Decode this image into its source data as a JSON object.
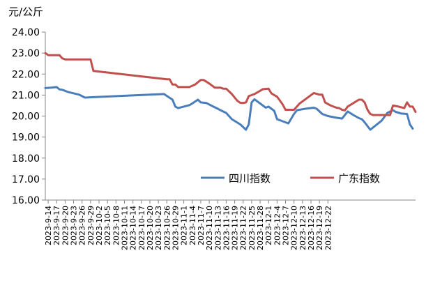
{
  "chart_data": {
    "type": "line",
    "unit_label": "元/公斤",
    "ylim": [
      16.0,
      24.0
    ],
    "yticks": [
      "24.00",
      "23.00",
      "22.00",
      "21.00",
      "20.00",
      "19.00",
      "18.00",
      "17.00",
      "16.00"
    ],
    "xticks": [
      "2023-9-14",
      "2023-9-17",
      "2023-9-20",
      "2023-9-23",
      "2023-9-26",
      "2023-9-29",
      "2023-10-2",
      "2023-10-5",
      "2023-10-8",
      "2023-10-11",
      "2023-10-14",
      "2023-10-17",
      "2023-10-20",
      "2023-10-23",
      "2023-10-26",
      "2023-10-29",
      "2023-11-1",
      "2023-11-4",
      "2023-11-7",
      "2023-11-10",
      "2023-11-13",
      "2023-11-16",
      "2023-11-19",
      "2023-11-22",
      "2023-11-25",
      "2023-11-28",
      "2023-12-1",
      "2023-12-4",
      "2023-12-7",
      "2023-12-10",
      "2023-12-13",
      "2023-12-16",
      "2023-12-19",
      "2023-12-22"
    ],
    "grid": false,
    "legend_position": "bottom-right inside plot",
    "series": [
      {
        "name": "四川指数",
        "color": "#4a7ebb",
        "points": [
          [
            0,
            21.33
          ],
          [
            2,
            21.35
          ],
          [
            4,
            21.38
          ],
          [
            5,
            21.27
          ],
          [
            6,
            21.25
          ],
          [
            8,
            21.15
          ],
          [
            12,
            21.02
          ],
          [
            14,
            20.88
          ],
          [
            17,
            20.9
          ],
          [
            42,
            21.05
          ],
          [
            45,
            20.78
          ],
          [
            46,
            20.45
          ],
          [
            47,
            20.38
          ],
          [
            49,
            20.45
          ],
          [
            51,
            20.52
          ],
          [
            52,
            20.6
          ],
          [
            54,
            20.78
          ],
          [
            55,
            20.65
          ],
          [
            57,
            20.62
          ],
          [
            59,
            20.48
          ],
          [
            61,
            20.35
          ],
          [
            62,
            20.28
          ],
          [
            64,
            20.15
          ],
          [
            66,
            19.85
          ],
          [
            69,
            19.6
          ],
          [
            71,
            19.35
          ],
          [
            72,
            19.6
          ],
          [
            73,
            20.65
          ],
          [
            74,
            20.8
          ],
          [
            76,
            20.6
          ],
          [
            78,
            20.4
          ],
          [
            79,
            20.45
          ],
          [
            81,
            20.25
          ],
          [
            82,
            19.85
          ],
          [
            84,
            19.75
          ],
          [
            86,
            19.65
          ],
          [
            88,
            20.1
          ],
          [
            89,
            20.28
          ],
          [
            92,
            20.35
          ],
          [
            95,
            20.4
          ],
          [
            96,
            20.35
          ],
          [
            98,
            20.1
          ],
          [
            100,
            20.0
          ],
          [
            103,
            19.92
          ],
          [
            105,
            19.88
          ],
          [
            107,
            20.22
          ],
          [
            109,
            20.05
          ],
          [
            111,
            19.9
          ],
          [
            112,
            19.85
          ],
          [
            113,
            19.7
          ],
          [
            115,
            19.35
          ],
          [
            119,
            19.78
          ],
          [
            121,
            20.15
          ],
          [
            123,
            20.28
          ],
          [
            124,
            20.2
          ],
          [
            126,
            20.12
          ],
          [
            128,
            20.1
          ],
          [
            129,
            19.6
          ],
          [
            130,
            19.4
          ]
        ]
      },
      {
        "name": "广东指数",
        "color": "#c0504d",
        "points": [
          [
            0,
            23.0
          ],
          [
            1,
            22.9
          ],
          [
            5,
            22.9
          ],
          [
            6,
            22.75
          ],
          [
            7,
            22.7
          ],
          [
            16,
            22.7
          ],
          [
            17,
            22.15
          ],
          [
            43,
            21.75
          ],
          [
            44,
            21.75
          ],
          [
            45,
            21.5
          ],
          [
            46,
            21.5
          ],
          [
            47,
            21.38
          ],
          [
            51,
            21.38
          ],
          [
            53,
            21.5
          ],
          [
            55,
            21.72
          ],
          [
            56,
            21.72
          ],
          [
            58,
            21.55
          ],
          [
            60,
            21.35
          ],
          [
            62,
            21.35
          ],
          [
            63,
            21.3
          ],
          [
            64,
            21.3
          ],
          [
            66,
            21.05
          ],
          [
            68,
            20.72
          ],
          [
            69,
            20.63
          ],
          [
            70,
            20.62
          ],
          [
            71,
            20.65
          ],
          [
            72,
            20.95
          ],
          [
            74,
            21.05
          ],
          [
            77,
            21.28
          ],
          [
            79,
            21.3
          ],
          [
            80,
            21.08
          ],
          [
            82,
            20.92
          ],
          [
            84,
            20.55
          ],
          [
            85,
            20.3
          ],
          [
            88,
            20.3
          ],
          [
            90,
            20.6
          ],
          [
            93,
            20.9
          ],
          [
            95,
            21.1
          ],
          [
            97,
            21.02
          ],
          [
            98,
            21.02
          ],
          [
            99,
            20.65
          ],
          [
            101,
            20.5
          ],
          [
            103,
            20.4
          ],
          [
            104,
            20.38
          ],
          [
            105,
            20.3
          ],
          [
            106,
            20.27
          ],
          [
            107,
            20.45
          ],
          [
            110,
            20.7
          ],
          [
            111,
            20.78
          ],
          [
            112,
            20.78
          ],
          [
            113,
            20.65
          ],
          [
            114,
            20.3
          ],
          [
            115,
            20.1
          ],
          [
            116,
            20.05
          ],
          [
            122,
            20.05
          ],
          [
            123,
            20.5
          ],
          [
            125,
            20.45
          ],
          [
            127,
            20.38
          ],
          [
            128,
            20.65
          ],
          [
            129,
            20.45
          ],
          [
            130,
            20.45
          ],
          [
            131,
            20.2
          ]
        ]
      }
    ]
  }
}
